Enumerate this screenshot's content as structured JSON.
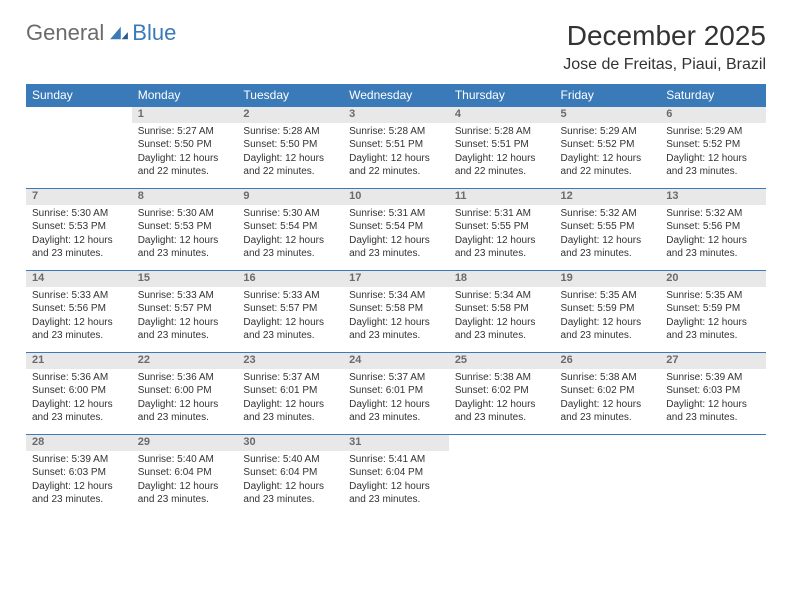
{
  "brand": {
    "part1": "General",
    "part2": "Blue"
  },
  "title": "December 2025",
  "location": "Jose de Freitas, Piaui, Brazil",
  "colors": {
    "header_bg": "#3a7ab8",
    "header_text": "#ffffff",
    "daynum_bg": "#e8e8e8",
    "daynum_text": "#6b6b6b",
    "border": "#3a7ab8",
    "body_text": "#333333",
    "logo_gray": "#6b6b6b",
    "logo_blue": "#3a7ab8"
  },
  "weekdays": [
    "Sunday",
    "Monday",
    "Tuesday",
    "Wednesday",
    "Thursday",
    "Friday",
    "Saturday"
  ],
  "weeks": [
    [
      null,
      {
        "n": "1",
        "sr": "5:27 AM",
        "ss": "5:50 PM",
        "dl": "12 hours and 22 minutes."
      },
      {
        "n": "2",
        "sr": "5:28 AM",
        "ss": "5:50 PM",
        "dl": "12 hours and 22 minutes."
      },
      {
        "n": "3",
        "sr": "5:28 AM",
        "ss": "5:51 PM",
        "dl": "12 hours and 22 minutes."
      },
      {
        "n": "4",
        "sr": "5:28 AM",
        "ss": "5:51 PM",
        "dl": "12 hours and 22 minutes."
      },
      {
        "n": "5",
        "sr": "5:29 AM",
        "ss": "5:52 PM",
        "dl": "12 hours and 22 minutes."
      },
      {
        "n": "6",
        "sr": "5:29 AM",
        "ss": "5:52 PM",
        "dl": "12 hours and 23 minutes."
      }
    ],
    [
      {
        "n": "7",
        "sr": "5:30 AM",
        "ss": "5:53 PM",
        "dl": "12 hours and 23 minutes."
      },
      {
        "n": "8",
        "sr": "5:30 AM",
        "ss": "5:53 PM",
        "dl": "12 hours and 23 minutes."
      },
      {
        "n": "9",
        "sr": "5:30 AM",
        "ss": "5:54 PM",
        "dl": "12 hours and 23 minutes."
      },
      {
        "n": "10",
        "sr": "5:31 AM",
        "ss": "5:54 PM",
        "dl": "12 hours and 23 minutes."
      },
      {
        "n": "11",
        "sr": "5:31 AM",
        "ss": "5:55 PM",
        "dl": "12 hours and 23 minutes."
      },
      {
        "n": "12",
        "sr": "5:32 AM",
        "ss": "5:55 PM",
        "dl": "12 hours and 23 minutes."
      },
      {
        "n": "13",
        "sr": "5:32 AM",
        "ss": "5:56 PM",
        "dl": "12 hours and 23 minutes."
      }
    ],
    [
      {
        "n": "14",
        "sr": "5:33 AM",
        "ss": "5:56 PM",
        "dl": "12 hours and 23 minutes."
      },
      {
        "n": "15",
        "sr": "5:33 AM",
        "ss": "5:57 PM",
        "dl": "12 hours and 23 minutes."
      },
      {
        "n": "16",
        "sr": "5:33 AM",
        "ss": "5:57 PM",
        "dl": "12 hours and 23 minutes."
      },
      {
        "n": "17",
        "sr": "5:34 AM",
        "ss": "5:58 PM",
        "dl": "12 hours and 23 minutes."
      },
      {
        "n": "18",
        "sr": "5:34 AM",
        "ss": "5:58 PM",
        "dl": "12 hours and 23 minutes."
      },
      {
        "n": "19",
        "sr": "5:35 AM",
        "ss": "5:59 PM",
        "dl": "12 hours and 23 minutes."
      },
      {
        "n": "20",
        "sr": "5:35 AM",
        "ss": "5:59 PM",
        "dl": "12 hours and 23 minutes."
      }
    ],
    [
      {
        "n": "21",
        "sr": "5:36 AM",
        "ss": "6:00 PM",
        "dl": "12 hours and 23 minutes."
      },
      {
        "n": "22",
        "sr": "5:36 AM",
        "ss": "6:00 PM",
        "dl": "12 hours and 23 minutes."
      },
      {
        "n": "23",
        "sr": "5:37 AM",
        "ss": "6:01 PM",
        "dl": "12 hours and 23 minutes."
      },
      {
        "n": "24",
        "sr": "5:37 AM",
        "ss": "6:01 PM",
        "dl": "12 hours and 23 minutes."
      },
      {
        "n": "25",
        "sr": "5:38 AM",
        "ss": "6:02 PM",
        "dl": "12 hours and 23 minutes."
      },
      {
        "n": "26",
        "sr": "5:38 AM",
        "ss": "6:02 PM",
        "dl": "12 hours and 23 minutes."
      },
      {
        "n": "27",
        "sr": "5:39 AM",
        "ss": "6:03 PM",
        "dl": "12 hours and 23 minutes."
      }
    ],
    [
      {
        "n": "28",
        "sr": "5:39 AM",
        "ss": "6:03 PM",
        "dl": "12 hours and 23 minutes."
      },
      {
        "n": "29",
        "sr": "5:40 AM",
        "ss": "6:04 PM",
        "dl": "12 hours and 23 minutes."
      },
      {
        "n": "30",
        "sr": "5:40 AM",
        "ss": "6:04 PM",
        "dl": "12 hours and 23 minutes."
      },
      {
        "n": "31",
        "sr": "5:41 AM",
        "ss": "6:04 PM",
        "dl": "12 hours and 23 minutes."
      },
      null,
      null,
      null
    ]
  ],
  "labels": {
    "sunrise": "Sunrise:",
    "sunset": "Sunset:",
    "daylight": "Daylight:"
  }
}
